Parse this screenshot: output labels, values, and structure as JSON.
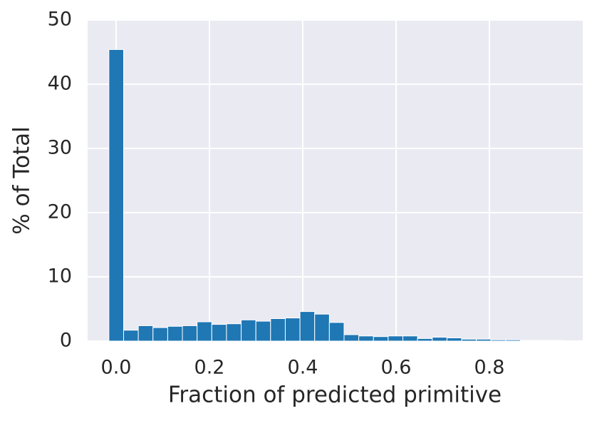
{
  "chart_data": {
    "type": "histogram",
    "xlabel": "Fraction of predicted primitive",
    "ylabel": "% of Total",
    "bins": [
      -0.0155,
      0.016,
      0.0475,
      0.079,
      0.1105,
      0.142,
      0.1735,
      0.205,
      0.2365,
      0.268,
      0.2995,
      0.331,
      0.3625,
      0.394,
      0.4255,
      0.457,
      0.4885,
      0.52,
      0.5515,
      0.583,
      0.6145,
      0.646,
      0.6775,
      0.709,
      0.7405,
      0.772,
      0.8035,
      0.835,
      0.8665,
      0.898,
      0.9295,
      0.961
    ],
    "values": [
      45.4,
      1.7,
      2.4,
      2.1,
      2.3,
      2.4,
      3.0,
      2.6,
      2.7,
      3.3,
      3.1,
      3.5,
      3.6,
      4.6,
      4.2,
      2.9,
      1.0,
      0.8,
      0.7,
      0.8,
      0.8,
      0.4,
      0.6,
      0.5,
      0.3,
      0.3,
      0.2,
      0.2,
      0.1,
      0.1,
      0.1
    ],
    "color": "#1f77b4",
    "xlim": [
      -0.0611,
      1.0
    ],
    "ylim": [
      0,
      50
    ],
    "xticks": [
      {
        "value": 0,
        "label": "0.0"
      },
      0.2,
      0.4,
      0.6,
      0.8
    ],
    "yticks": [
      0,
      10,
      20,
      30,
      40,
      50
    ],
    "grid": true
  }
}
